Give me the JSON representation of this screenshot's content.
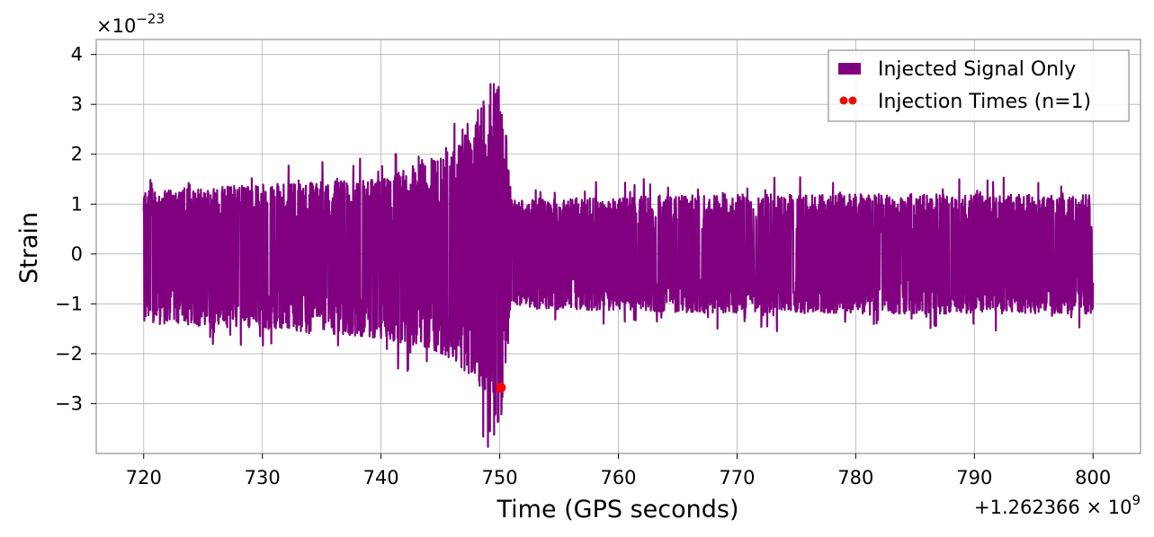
{
  "chart_data": {
    "type": "line",
    "xlabel": "Time (GPS seconds)",
    "ylabel": "Strain",
    "x_offset_text": {
      "base": "+1.262366 × 10",
      "exponent": "9"
    },
    "y_scale_text": {
      "base": "×10",
      "exponent": "−23"
    },
    "xlim": [
      716,
      804
    ],
    "ylim": [
      -4.0,
      4.3
    ],
    "x_ticks": [
      720,
      730,
      740,
      750,
      760,
      770,
      780,
      790,
      800
    ],
    "x_tick_labels": [
      "720",
      "730",
      "740",
      "750",
      "760",
      "770",
      "780",
      "790",
      "800"
    ],
    "y_ticks": [
      -3,
      -2,
      -1,
      0,
      1,
      2,
      3,
      4
    ],
    "y_tick_labels": [
      "−3",
      "−2",
      "−1",
      "0",
      "1",
      "2",
      "3",
      "4"
    ],
    "grid": true,
    "legend_position": "top-right",
    "series": [
      {
        "name": "Injected Signal Only",
        "kind": "line",
        "color": "#800080",
        "x_range": [
          720,
          800
        ],
        "typical_envelope": [
          {
            "x": 720,
            "ymin": -1.4,
            "ymax": 1.3
          },
          {
            "x": 730,
            "ymin": -1.5,
            "ymax": 1.4
          },
          {
            "x": 740,
            "ymin": -1.7,
            "ymax": 1.5
          },
          {
            "x": 745,
            "ymin": -2.0,
            "ymax": 2.0
          },
          {
            "x": 748,
            "ymin": -2.5,
            "ymax": 2.8
          },
          {
            "x": 750,
            "ymin": -3.6,
            "ymax": 3.9
          },
          {
            "x": 751,
            "ymin": -1.1,
            "ymax": 1.1
          },
          {
            "x": 770,
            "ymin": -1.2,
            "ymax": 1.2
          },
          {
            "x": 800,
            "ymin": -1.2,
            "ymax": 1.2
          }
        ]
      },
      {
        "name": "Injection Times (n=1)",
        "kind": "scatter",
        "color": "#ff0000",
        "points": [
          {
            "x": 750.1,
            "y": -2.68
          }
        ]
      }
    ]
  }
}
